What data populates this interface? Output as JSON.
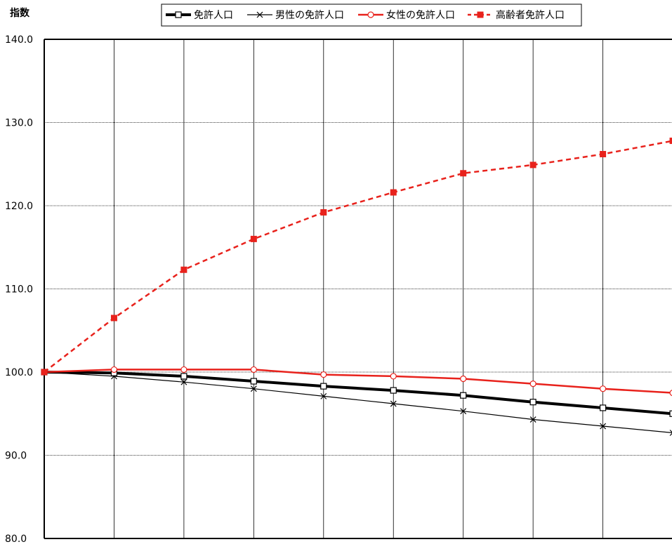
{
  "chart_data": {
    "type": "line",
    "ylabel": "指数",
    "ylim": [
      80,
      140
    ],
    "yticks": [
      80,
      90,
      100,
      110,
      120,
      130,
      140
    ],
    "ytick_labels": [
      "80.0",
      "90.0",
      "100.0",
      "110.0",
      "120.0",
      "130.0",
      "140.0"
    ],
    "x": [
      0,
      1,
      2,
      3,
      4,
      5,
      6,
      7,
      8,
      9
    ],
    "grid": {
      "horizontal": true,
      "vertical": true
    },
    "legend_position": "top",
    "series": [
      {
        "name": "免許人口",
        "values": [
          100.0,
          99.9,
          99.5,
          98.9,
          98.3,
          97.8,
          97.2,
          96.4,
          95.7,
          95.0
        ],
        "color": "#000000",
        "style": "solid-thick",
        "marker": "square-open"
      },
      {
        "name": "男性の免許人口",
        "values": [
          100.0,
          99.5,
          98.8,
          98.0,
          97.1,
          96.2,
          95.3,
          94.3,
          93.5,
          92.7
        ],
        "color": "#000000",
        "style": "solid-thin",
        "marker": "x"
      },
      {
        "name": "女性の免許人口",
        "values": [
          100.0,
          100.3,
          100.3,
          100.3,
          99.7,
          99.5,
          99.2,
          98.6,
          98.0,
          97.5
        ],
        "color": "#e8221c",
        "style": "solid",
        "marker": "circle-open"
      },
      {
        "name": "高齢者免許人口",
        "values": [
          100.0,
          106.5,
          112.3,
          116.0,
          119.2,
          121.6,
          123.9,
          124.9,
          126.2,
          127.8
        ],
        "color": "#e8221c",
        "style": "dashed",
        "marker": "square-filled"
      }
    ]
  }
}
